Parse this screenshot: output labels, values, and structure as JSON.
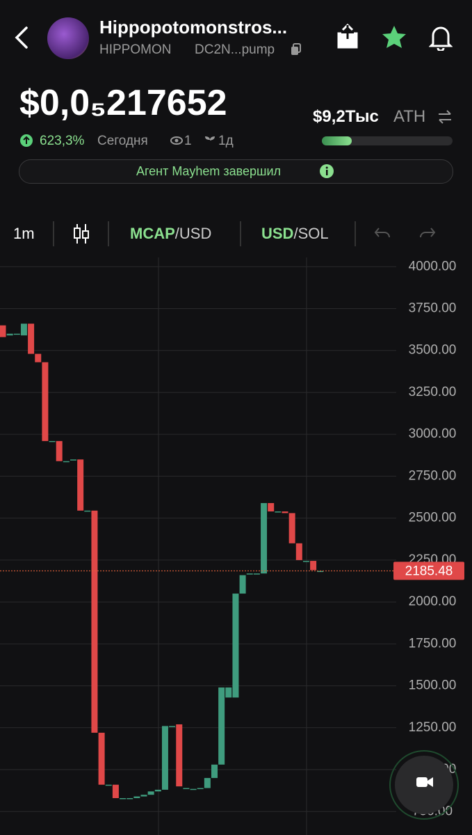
{
  "header": {
    "name": "Hippopotomonstros...",
    "ticker": "HIPPOMON",
    "address": "DC2N...pump"
  },
  "price": "$0,0₅217652",
  "stats": {
    "change": "623,3%",
    "period": "Сегодня",
    "watchers": "1",
    "age": "1д"
  },
  "ath": {
    "value": "$9,2Тыс",
    "label": "ATH",
    "progress": 23
  },
  "banner": {
    "text": "Агент Mayhem завершил"
  },
  "toolbar": {
    "interval": "1m",
    "mcap": "MCAP",
    "mcap_unit": "/USD",
    "quote": "USD",
    "quote_unit": "/SOL"
  },
  "chart_data": {
    "type": "candlestick",
    "open": [
      3650,
      3590,
      3600,
      3590,
      3660,
      3480,
      3430,
      2960,
      2960,
      2840,
      2850,
      2850,
      2545,
      2545,
      1220,
      910,
      910,
      830,
      830,
      830,
      840,
      850,
      870,
      880,
      1260,
      1270,
      890,
      885,
      885,
      890,
      950,
      1030,
      1430,
      1430,
      2050,
      2170,
      2170,
      2170,
      2590,
      2540,
      2540,
      2530,
      2350,
      2245,
      2245,
      2185
    ],
    "close": [
      3580,
      3600,
      3600,
      3660,
      3480,
      3430,
      2960,
      2960,
      2840,
      2840,
      2850,
      2545,
      2545,
      1220,
      910,
      910,
      830,
      830,
      830,
      840,
      850,
      870,
      880,
      1260,
      1260,
      900,
      890,
      885,
      890,
      950,
      1030,
      1490,
      1490,
      2050,
      2160,
      2170,
      2170,
      2590,
      2540,
      2540,
      2530,
      2350,
      2250,
      2245,
      2190,
      2185
    ],
    "up_color": "#3f9c7e",
    "down_color": "#e04848",
    "ylim": [
      610,
      4055
    ],
    "yticks": [
      {
        "value": 750,
        "label": "750.00"
      },
      {
        "value": 1000,
        "label": "1000.00"
      },
      {
        "value": 1250,
        "label": "1250.00"
      },
      {
        "value": 1500,
        "label": "1500.00"
      },
      {
        "value": 1750,
        "label": "1750.00"
      },
      {
        "value": 2000,
        "label": "2000.00"
      },
      {
        "value": 2250,
        "label": "2250.00"
      },
      {
        "value": 2500,
        "label": "2500.00"
      },
      {
        "value": 2750,
        "label": "2750.00"
      },
      {
        "value": 3000,
        "label": "3000.00"
      },
      {
        "value": 3250,
        "label": "3250.00"
      },
      {
        "value": 3500,
        "label": "3500.00"
      },
      {
        "value": 3750,
        "label": "3750.00"
      },
      {
        "value": 4000,
        "label": "4000.00"
      }
    ],
    "current_price": 2185.48,
    "grid": true
  }
}
